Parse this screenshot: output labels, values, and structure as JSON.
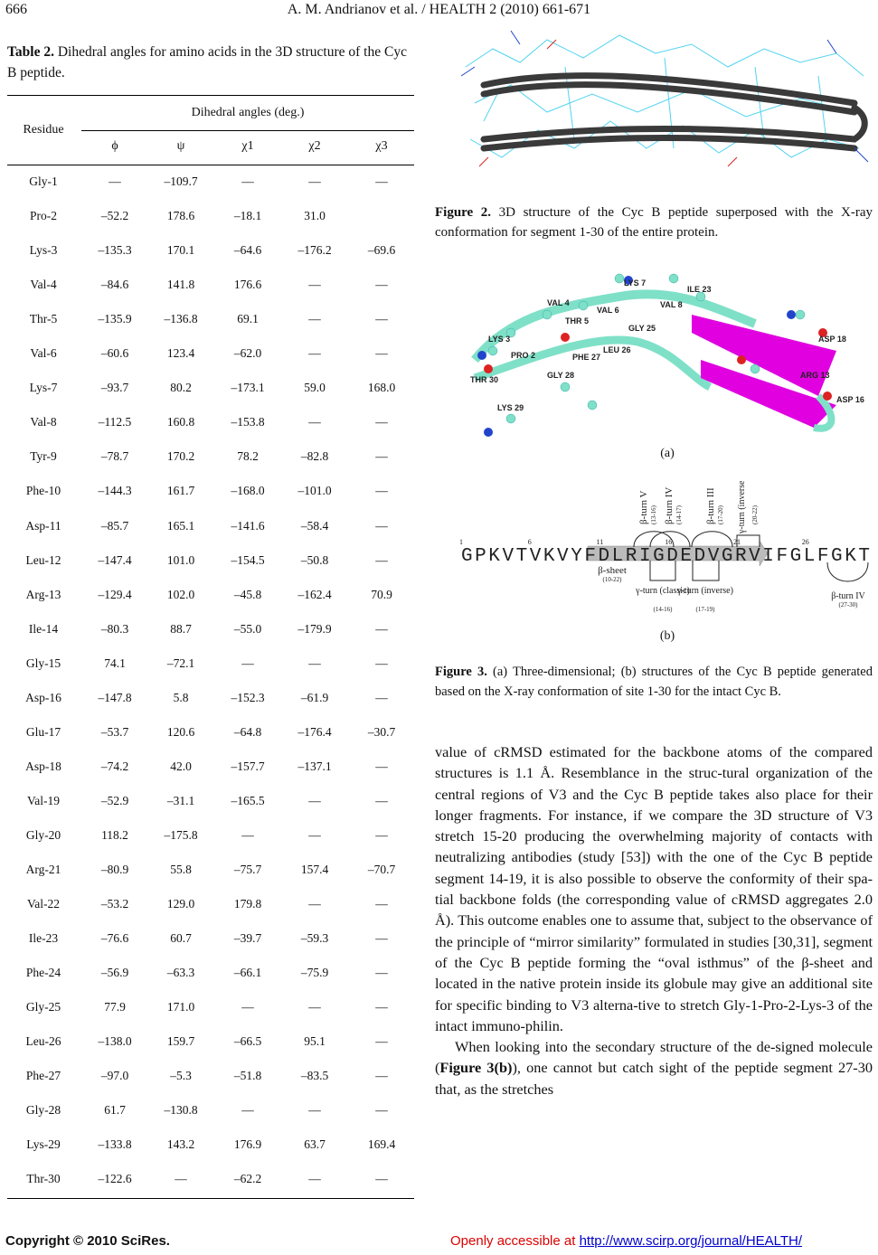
{
  "header": {
    "page_number": "666",
    "running_head": "A. M. Andrianov et al. / HEALTH 2 (2010) 661-671"
  },
  "table": {
    "caption_label": "Table 2.",
    "caption_text": " Dihedral angles for amino acids in the 3D structure of the Cyc B peptide.",
    "header_residue": "Residue",
    "header_group": "Dihedral angles (deg.)",
    "columns": [
      "ϕ",
      "ψ",
      "χ1",
      "χ2",
      "χ3"
    ],
    "rows": [
      [
        "Gly-1",
        "—",
        "–109.7",
        "—",
        "—",
        "—"
      ],
      [
        "Pro-2",
        "–52.2",
        "178.6",
        "–18.1",
        "31.0",
        ""
      ],
      [
        "Lys-3",
        "–135.3",
        "170.1",
        "–64.6",
        "–176.2",
        "–69.6"
      ],
      [
        "Val-4",
        "–84.6",
        "141.8",
        "176.6",
        "—",
        "—"
      ],
      [
        "Thr-5",
        "–135.9",
        "–136.8",
        "69.1",
        "—",
        "—"
      ],
      [
        "Val-6",
        "–60.6",
        "123.4",
        "–62.0",
        "—",
        "—"
      ],
      [
        "Lys-7",
        "–93.7",
        "80.2",
        "–173.1",
        "59.0",
        "168.0"
      ],
      [
        "Val-8",
        "–112.5",
        "160.8",
        "–153.8",
        "—",
        "—"
      ],
      [
        "Tyr-9",
        "–78.7",
        "170.2",
        "78.2",
        "–82.8",
        "—"
      ],
      [
        "Phe-10",
        "–144.3",
        "161.7",
        "–168.0",
        "–101.0",
        "—"
      ],
      [
        "Asp-11",
        "–85.7",
        "165.1",
        "–141.6",
        "–58.4",
        "—"
      ],
      [
        "Leu-12",
        "–147.4",
        "101.0",
        "–154.5",
        "–50.8",
        "—"
      ],
      [
        "Arg-13",
        "–129.4",
        "102.0",
        "–45.8",
        "–162.4",
        "70.9"
      ],
      [
        "Ile-14",
        "–80.3",
        "88.7",
        "–55.0",
        "–179.9",
        "—"
      ],
      [
        "Gly-15",
        "74.1",
        "–72.1",
        "—",
        "—",
        "—"
      ],
      [
        "Asp-16",
        "–147.8",
        "5.8",
        "–152.3",
        "–61.9",
        "—"
      ],
      [
        "Glu-17",
        "–53.7",
        "120.6",
        "–64.8",
        "–176.4",
        "–30.7"
      ],
      [
        "Asp-18",
        "–74.2",
        "42.0",
        "–157.7",
        "–137.1",
        "—"
      ],
      [
        "Val-19",
        "–52.9",
        "–31.1",
        "–165.5",
        "—",
        "—"
      ],
      [
        "Gly-20",
        "118.2",
        "–175.8",
        "—",
        "—",
        "—"
      ],
      [
        "Arg-21",
        "–80.9",
        "55.8",
        "–75.7",
        "157.4",
        "–70.7"
      ],
      [
        "Val-22",
        "–53.2",
        "129.0",
        "179.8",
        "—",
        "—"
      ],
      [
        "Ile-23",
        "–76.6",
        "60.7",
        "–39.7",
        "–59.3",
        "—"
      ],
      [
        "Phe-24",
        "–56.9",
        "–63.3",
        "–66.1",
        "–75.9",
        "—"
      ],
      [
        "Gly-25",
        "77.9",
        "171.0",
        "—",
        "—",
        "—"
      ],
      [
        "Leu-26",
        "–138.0",
        "159.7",
        "–66.5",
        "95.1",
        "—"
      ],
      [
        "Phe-27",
        "–97.0",
        "–5.3",
        "–51.8",
        "–83.5",
        "—"
      ],
      [
        "Gly-28",
        "61.7",
        "–130.8",
        "—",
        "—",
        "—"
      ],
      [
        "Lys-29",
        "–133.8",
        "143.2",
        "176.9",
        "63.7",
        "169.4"
      ],
      [
        "Thr-30",
        "–122.6",
        "—",
        "–62.2",
        "—",
        "—"
      ]
    ]
  },
  "figure2": {
    "caption_label": "Figure 2.",
    "caption_text": " 3D structure of the Cyc B peptide superposed with the X-ray conformation for segment 1-30 of the entire protein."
  },
  "figure3": {
    "panel_a_label": "(a)",
    "panel_b_label": "(b)",
    "residue_labels_a": [
      "LYS 7",
      "ILE 23",
      "VAL 4",
      "VAL 6",
      "VAL 8",
      "THR 5",
      "GLY 25",
      "LYS 3",
      "PRO 2",
      "LEU 26",
      "PHE 27",
      "GLY 28",
      "THR 30",
      "LYS 29",
      "ASP 18",
      "ARG 13",
      "ASP 16"
    ],
    "sequence": [
      "G",
      "P",
      "K",
      "V",
      "T",
      "V",
      "K",
      "V",
      "Y",
      "F",
      "D",
      "L",
      "R",
      "I",
      "G",
      "D",
      "E",
      "D",
      "V",
      "G",
      "R",
      "V",
      "I",
      "F",
      "G",
      "L",
      "F",
      "G",
      "K",
      "T"
    ],
    "position_marks": [
      "1",
      "6",
      "11",
      "16",
      "21",
      "26"
    ],
    "annotations_top": [
      {
        "label": "β-turn V",
        "range": "(13-16)"
      },
      {
        "label": "β-turn IV",
        "range": "(14-17)"
      },
      {
        "label": "β-turn III",
        "range": "(17-20)"
      },
      {
        "label": "γ-turn (inverse)",
        "range": "(20-22)"
      }
    ],
    "annotations_bottom": [
      {
        "label": "β-sheet",
        "range": "(10-22)"
      },
      {
        "label": "γ-turn (classic)",
        "range": "(14-16)"
      },
      {
        "label": "γ-turn (inverse)",
        "range": "(17-19)"
      },
      {
        "label": "β-turn IV",
        "range": "(27-30)"
      }
    ],
    "caption_label": "Figure 3.",
    "caption_text": " (a) Three-dimensional; (b) structures of the Cyc B peptide generated based on the X-ray conformation of site 1-30 for the intact Cyc B."
  },
  "body": {
    "paragraph1": "value of cRMSD estimated for the backbone atoms of the compared structures is 1.1 Å. Resemblance in the struc-tural organization of the central regions of V3 and the Cyc B peptide takes also place for their longer fragments. For instance, if we compare the 3D structure of V3 stretch 15-20 producing the overwhelming majority of contacts with neutralizing antibodies (study [53]) with the one of the Cyc B peptide segment 14-19, it is also possible to observe the conformity of their spa- tial backbone folds (the corresponding value of cRMSD aggregates 2.0 Å). This outcome enables one to assume that, subject to the observance of the principle of “mirror similarity” formulated in studies [30,31], segment of the Cyc B peptide forming the “oval isthmus” of the β-sheet and located in the native protein inside its globule may give an additional site for specific binding to V3 alterna-tive to stretch Gly-1-Pro-2-Lys-3 of the intact immuno-philin.",
    "paragraph2_pre": "When looking into the secondary structure of the de-signed molecule (",
    "paragraph2_ref": "Figure 3(b)",
    "paragraph2_post": "), one cannot but catch sight of the peptide segment 27-30 that, as the stretches"
  },
  "footer": {
    "copyright": "Copyright © 2010 SciRes.",
    "access_text": "Openly accessible at ",
    "link": "http://www.scirp.org/journal/HEALTH/"
  },
  "colors": {
    "ribbon_cyan": "#7fe0c8",
    "sheet_magenta": "#e000e0",
    "tube_gray": "#3a3a3a",
    "stick_cyan": "#33ccee"
  }
}
